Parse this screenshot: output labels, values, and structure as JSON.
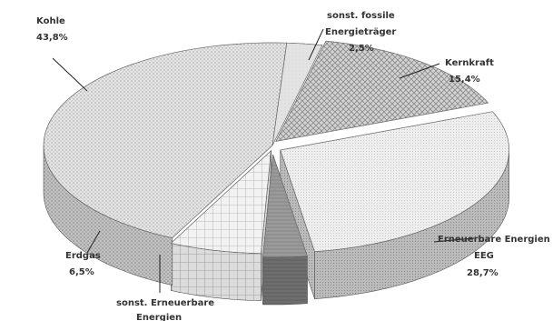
{
  "chart_data": {
    "type": "pie",
    "style": "3d-exploded",
    "title": "",
    "slices": [
      {
        "label": "Kohle",
        "value": 43.8,
        "display": "43,8%"
      },
      {
        "label": "sonst. fossile Energieträger",
        "value": 2.5,
        "display": "2,5%"
      },
      {
        "label": "Kernkraft",
        "value": 15.4,
        "display": "15,4%"
      },
      {
        "label": "Erneuerbare Energien EEG",
        "value": 28.7,
        "display": "28,7%"
      },
      {
        "label": "sonst. Erneuerbare Energien",
        "value": 3.1,
        "display": ""
      },
      {
        "label": "Erdgas",
        "value": 6.5,
        "display": "6,5%"
      }
    ]
  },
  "labels": {
    "kohle": {
      "name": "Kohle",
      "value": "43,8%"
    },
    "fossile": {
      "line1": "sonst. fossile",
      "line2": "Energieträger",
      "value": "2,5%"
    },
    "kernkraft": {
      "name": "Kernkraft",
      "value": "15,4%"
    },
    "eeg": {
      "line1": "Erneuerbare Energien",
      "line2": "EEG",
      "value": "28,7%"
    },
    "sonst_ern": {
      "line1": "sonst. Erneuerbare",
      "line2": "Energien"
    },
    "erdgas": {
      "name": "Erdgas",
      "value": "6,5%"
    }
  }
}
